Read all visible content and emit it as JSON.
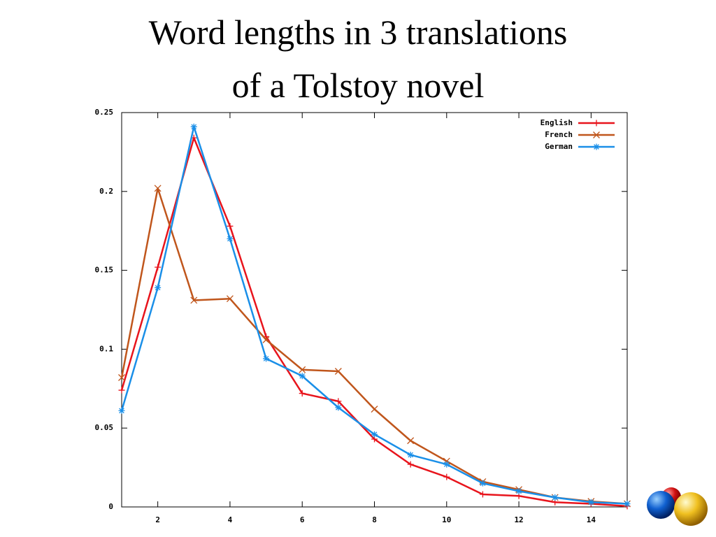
{
  "chart_data": {
    "type": "line",
    "title": [
      "Word lengths in 3 translations",
      "of a Tolstoy novel"
    ],
    "x": [
      1,
      2,
      3,
      4,
      5,
      6,
      7,
      8,
      9,
      10,
      11,
      12,
      13,
      14,
      15
    ],
    "series": [
      {
        "name": "English",
        "color": "#e8141c",
        "marker": "plus",
        "values": [
          0.074,
          0.152,
          0.234,
          0.178,
          0.108,
          0.072,
          0.067,
          0.043,
          0.027,
          0.019,
          0.008,
          0.007,
          0.003,
          0.002,
          0.0005
        ]
      },
      {
        "name": "French",
        "color": "#c0561c",
        "marker": "cross",
        "values": [
          0.082,
          0.202,
          0.131,
          0.132,
          0.106,
          0.087,
          0.086,
          0.062,
          0.042,
          0.029,
          0.016,
          0.011,
          0.006,
          0.0035,
          0.002
        ]
      },
      {
        "name": "German",
        "color": "#1a8fe8",
        "marker": "star",
        "values": [
          0.061,
          0.139,
          0.241,
          0.17,
          0.094,
          0.083,
          0.063,
          0.046,
          0.033,
          0.027,
          0.015,
          0.01,
          0.006,
          0.003,
          0.002
        ]
      }
    ],
    "xlim": [
      1,
      15
    ],
    "xticks": [
      2,
      4,
      6,
      8,
      10,
      12,
      14
    ],
    "ylim": [
      0,
      0.25
    ],
    "yticks": [
      0,
      0.05,
      0.1,
      0.15,
      0.2,
      0.25
    ],
    "grid": false,
    "legend": "top-right"
  }
}
